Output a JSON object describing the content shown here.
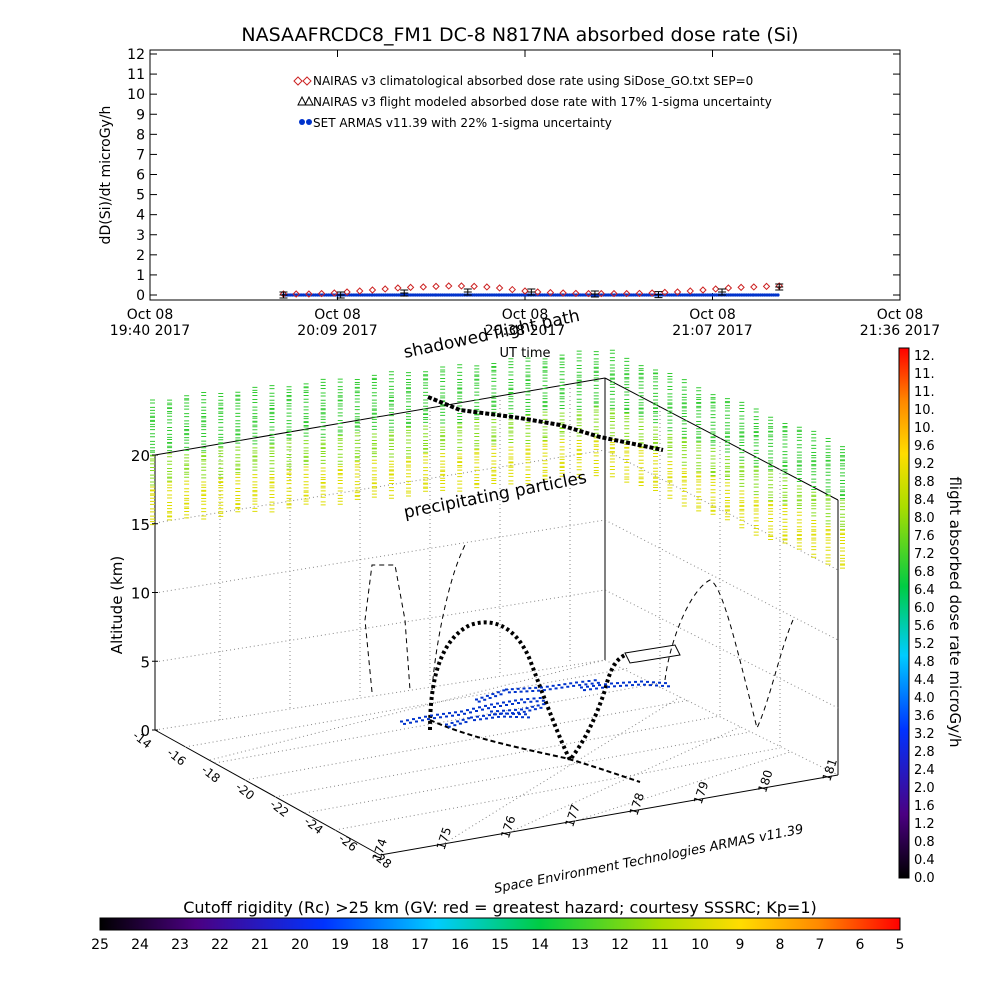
{
  "title": "NASAAFRCDC8_FM1 DC-8   N817NA absorbed dose rate (Si)",
  "colors": {
    "nairas_clim": "#cc2222",
    "nairas_flight": "#000000",
    "armas": "#0033cc",
    "precip_green": "#33cc33",
    "precip_yellow": "#dddd00"
  },
  "chart_data": [
    {
      "type": "scatter",
      "ylabel": "dD(Si)/dt microGy/h",
      "xlabel": "UT time",
      "ylim": [
        0,
        12
      ],
      "y_ticks": [
        "0",
        "1",
        "2",
        "3",
        "4",
        "5",
        "6",
        "7",
        "8",
        "9",
        "10",
        "11",
        "12"
      ],
      "x_ticks": [
        {
          "line1": "Oct 08",
          "line2": "19:40 2017"
        },
        {
          "line1": "Oct 08",
          "line2": "20:09 2017"
        },
        {
          "line1": "Oct 08",
          "line2": "20:38 2017"
        },
        {
          "line1": "Oct 08",
          "line2": "21:07 2017"
        },
        {
          "line1": "Oct 08",
          "line2": "21:36 2017"
        }
      ],
      "legend": [
        {
          "marker": "diamond",
          "label": "NAIRAS v3 climatological absorbed dose rate using SiDose_GO.txt SEP=0"
        },
        {
          "marker": "triangle",
          "label": "NAIRAS v3 flight modeled absorbed dose rate with 17% 1-sigma uncertainty"
        },
        {
          "marker": "dot",
          "label": "SET ARMAS v11.39 with 22% 1-sigma uncertainty"
        }
      ],
      "series": [
        {
          "name": "NAIRAS v3 climatological absorbed dose rate using SiDose_GO.txt SEP=0",
          "x_minutes": [
            42,
            46,
            50,
            54,
            58,
            62,
            66,
            70,
            74,
            78,
            82,
            86,
            90,
            94,
            98,
            102,
            106,
            110,
            114,
            118,
            122,
            126,
            130,
            134,
            138,
            142,
            146,
            150,
            154,
            158,
            162,
            166,
            170,
            174,
            178,
            182,
            186,
            190,
            194,
            198
          ],
          "values": [
            0,
            0,
            0,
            0.02,
            0.05,
            0.1,
            0.15,
            0.2,
            0.25,
            0.3,
            0.33,
            0.35,
            0.38,
            0.4,
            0.4,
            0.38,
            0.35,
            0.3,
            0.22,
            0.15,
            0.1,
            0.07,
            0.05,
            0.03,
            0.02,
            0.02,
            0.02,
            0.02,
            0.03,
            0.05,
            0.08,
            0.1,
            0.15,
            0.2,
            0.25,
            0.3,
            0.33,
            0.35,
            0.38,
            0.4
          ]
        },
        {
          "name": "NAIRAS v3 flight modeled absorbed dose rate with 17% 1-sigma uncertainty",
          "x_minutes": [
            42,
            60,
            80,
            100,
            120,
            140,
            160,
            180,
            198
          ],
          "values": [
            0,
            0,
            0.1,
            0.15,
            0.15,
            0.05,
            0.02,
            0.15,
            0.4
          ]
        },
        {
          "name": "SET ARMAS v11.39 with 22% 1-sigma uncertainty",
          "x_minutes": [
            42,
            50,
            60,
            70,
            80,
            90,
            100,
            110,
            120,
            130,
            140,
            150,
            160,
            170,
            180,
            190,
            198
          ],
          "values": [
            0,
            0,
            0,
            0,
            0,
            0,
            0,
            0,
            0,
            0,
            0,
            0,
            0,
            0,
            0,
            0,
            0
          ]
        }
      ],
      "x_range_minutes": [
        0,
        236
      ]
    },
    {
      "type": "scatter",
      "zlabel": "Altitude (km)",
      "z_ticks": [
        "0",
        "5",
        "10",
        "15",
        "20"
      ],
      "lat_ticks": [
        "-14",
        "-16",
        "-18",
        "-20",
        "-22",
        "-24",
        "-26",
        "-28"
      ],
      "lon_ticks": [
        "174",
        "175",
        "176",
        "177",
        "178",
        "179",
        "180",
        "181"
      ],
      "annotations": [
        "shadowed flight path",
        "precipitating particles"
      ],
      "credit": "Space Environment Technologies ARMAS v11.39"
    }
  ],
  "dose_colorbar": {
    "label": "flight absorbed dose rate microGy/h",
    "ticks": [
      "12.",
      "11.",
      "11.",
      "10.",
      "10.",
      "9.6",
      "9.2",
      "8.8",
      "8.4",
      "8.0",
      "7.6",
      "7.2",
      "6.8",
      "6.4",
      "6.0",
      "5.6",
      "5.2",
      "4.8",
      "4.4",
      "4.0",
      "3.6",
      "3.2",
      "2.8",
      "2.4",
      "2.0",
      "1.6",
      "1.2",
      "0.8",
      "0.4",
      "0.0"
    ]
  },
  "rc_colorbar": {
    "label": "Cutoff rigidity (Rc) >25 km (GV: red = greatest hazard; courtesy SSSRC; Kp=1)",
    "ticks": [
      "25",
      "24",
      "23",
      "22",
      "21",
      "20",
      "19",
      "18",
      "17",
      "16",
      "15",
      "14",
      "13",
      "12",
      "11",
      "10",
      "9",
      "8",
      "7",
      "6",
      "5"
    ]
  }
}
